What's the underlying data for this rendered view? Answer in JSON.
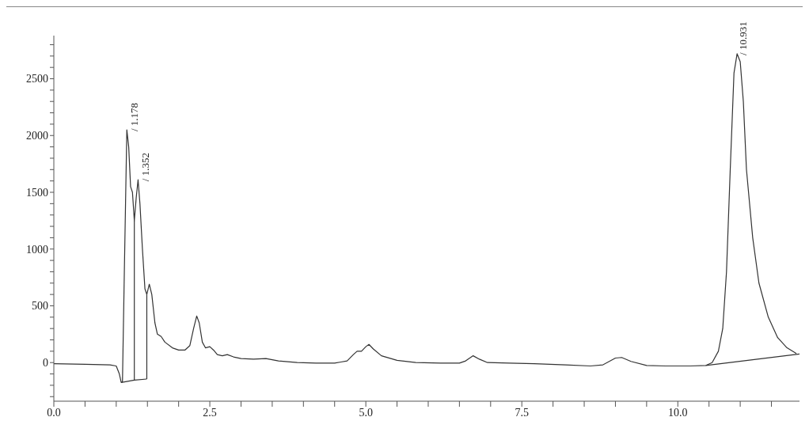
{
  "chart_data": {
    "type": "line",
    "xlim": [
      0,
      11.95
    ],
    "ylim": [
      -340,
      2880
    ],
    "xticks": [
      {
        "value": 0,
        "label": "0.0"
      },
      {
        "value": 0.5,
        "label": null
      },
      {
        "value": 1,
        "label": null
      },
      {
        "value": 1.5,
        "label": null
      },
      {
        "value": 2,
        "label": null
      },
      {
        "value": 2.5,
        "label": "2.5"
      },
      {
        "value": 3,
        "label": null
      },
      {
        "value": 3.5,
        "label": null
      },
      {
        "value": 4,
        "label": null
      },
      {
        "value": 4.5,
        "label": null
      },
      {
        "value": 5,
        "label": "5.0"
      },
      {
        "value": 5.5,
        "label": null
      },
      {
        "value": 6,
        "label": null
      },
      {
        "value": 6.5,
        "label": null
      },
      {
        "value": 7,
        "label": null
      },
      {
        "value": 7.5,
        "label": "7.5"
      },
      {
        "value": 8,
        "label": null
      },
      {
        "value": 8.5,
        "label": null
      },
      {
        "value": 9,
        "label": null
      },
      {
        "value": 9.5,
        "label": null
      },
      {
        "value": 10,
        "label": "10.0"
      },
      {
        "value": 10.5,
        "label": null
      },
      {
        "value": 11,
        "label": null
      },
      {
        "value": 11.5,
        "label": null
      }
    ],
    "yticks": [
      {
        "value": -300,
        "label": null
      },
      {
        "value": -200,
        "label": null
      },
      {
        "value": -100,
        "label": null
      },
      0,
      {
        "value": 100,
        "label": null
      },
      {
        "value": 200,
        "label": null
      },
      {
        "value": 300,
        "label": null
      },
      {
        "value": 400,
        "label": null
      },
      500,
      {
        "value": 600,
        "label": null
      },
      {
        "value": 700,
        "label": null
      },
      {
        "value": 800,
        "label": null
      },
      {
        "value": 900,
        "label": null
      },
      1000,
      {
        "value": 1100,
        "label": null
      },
      {
        "value": 1200,
        "label": null
      },
      {
        "value": 1300,
        "label": null
      },
      {
        "value": 1400,
        "label": null
      },
      1500,
      {
        "value": 1600,
        "label": null
      },
      {
        "value": 1700,
        "label": null
      },
      {
        "value": 1800,
        "label": null
      },
      {
        "value": 1900,
        "label": null
      },
      2000,
      {
        "value": 2100,
        "label": null
      },
      {
        "value": 2200,
        "label": null
      },
      {
        "value": 2300,
        "label": null
      },
      {
        "value": 2400,
        "label": null
      },
      2500,
      {
        "value": 2600,
        "label": null
      },
      {
        "value": 2700,
        "label": null
      },
      {
        "value": 2800,
        "label": null
      }
    ],
    "marker": "none",
    "line_style": "solid",
    "series": [
      {
        "color": "#333333",
        "x": [
          0,
          0.5,
          0.9,
          1.0,
          1.05,
          1.08,
          1.1,
          1.13,
          1.17,
          1.2,
          1.23,
          1.26,
          1.29,
          1.32,
          1.35,
          1.38,
          1.42,
          1.46,
          1.49,
          1.53,
          1.57,
          1.62,
          1.66,
          1.72,
          1.78,
          1.9,
          2.0,
          2.1,
          2.18,
          2.24,
          2.29,
          2.33,
          2.38,
          2.43,
          2.5,
          2.56,
          2.62,
          2.7,
          2.78,
          2.88,
          3.0,
          3.2,
          3.4,
          3.6,
          3.9,
          4.2,
          4.5,
          4.6,
          4.7,
          4.8,
          4.86,
          4.93,
          5.0,
          5.05,
          5.12,
          5.25,
          5.5,
          5.8,
          6.2,
          6.5,
          6.6,
          6.72,
          6.82,
          6.95,
          7.3,
          7.7,
          8.2,
          8.6,
          8.8,
          9.0,
          9.1,
          9.25,
          9.5,
          9.8,
          10.2,
          10.45,
          10.55,
          10.65,
          10.72,
          10.78,
          10.84,
          10.9,
          10.95,
          11.0,
          11.05,
          11.1,
          11.2,
          11.3,
          11.45,
          11.6,
          11.75,
          11.9
        ],
        "values": [
          -10,
          -15,
          -20,
          -30,
          -100,
          -175,
          -170,
          800,
          2050,
          1900,
          1550,
          1500,
          1250,
          1450,
          1610,
          1400,
          1000,
          650,
          600,
          690,
          600,
          350,
          250,
          230,
          180,
          130,
          110,
          110,
          150,
          300,
          410,
          350,
          180,
          130,
          140,
          110,
          70,
          60,
          70,
          50,
          35,
          30,
          35,
          15,
          0,
          -5,
          -5,
          5,
          15,
          70,
          100,
          100,
          140,
          160,
          120,
          60,
          20,
          0,
          -5,
          -5,
          15,
          60,
          30,
          0,
          -5,
          -10,
          -20,
          -30,
          -20,
          40,
          45,
          10,
          -25,
          -30,
          -30,
          -25,
          0,
          100,
          300,
          800,
          1700,
          2550,
          2720,
          2650,
          2300,
          1700,
          1100,
          700,
          400,
          220,
          130,
          80
        ]
      },
      {
        "color": "#333333",
        "x": [
          1.08,
          1.29,
          1.49
        ],
        "values": [
          -175,
          -155,
          -145
        ]
      },
      {
        "color": "#333333",
        "x": [
          1.29,
          1.29
        ],
        "values": [
          -155,
          1250
        ]
      },
      {
        "color": "#333333",
        "x": [
          1.49,
          1.49
        ],
        "values": [
          -145,
          600
        ]
      },
      {
        "color": "#333333",
        "x": [
          10.45,
          11.95
        ],
        "values": [
          -25,
          75
        ]
      }
    ],
    "annotations": [
      {
        "text": "/ 1.178",
        "x": 1.178,
        "y": 2050
      },
      {
        "text": "/ 1.352",
        "x": 1.352,
        "y": 1610
      },
      {
        "text": "/ 10.931",
        "x": 10.931,
        "y": 2720
      }
    ]
  }
}
